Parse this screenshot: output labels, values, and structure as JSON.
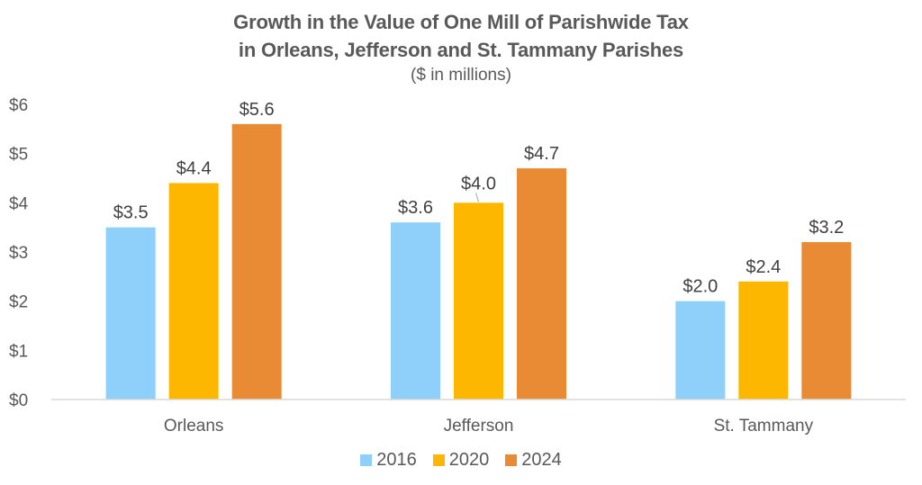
{
  "chart_data": {
    "type": "bar",
    "title_lines": [
      "Growth in the Value of One Mill of Parishwide Tax",
      "in Orleans, Jefferson and St. Tammany Parishes"
    ],
    "subtitle": "($ in millions)",
    "categories": [
      "Orleans",
      "Jefferson",
      "St. Tammany"
    ],
    "series": [
      {
        "name": "2016",
        "color": "#8FD0FA",
        "values": [
          3.5,
          3.6,
          2.0
        ],
        "labels": [
          "$3.5",
          "$3.6",
          "$2.0"
        ]
      },
      {
        "name": "2020",
        "color": "#FDB700",
        "values": [
          4.4,
          4.0,
          2.4
        ],
        "labels": [
          "$4.4",
          "$4.0",
          "$2.4"
        ]
      },
      {
        "name": "2024",
        "color": "#E98A35",
        "values": [
          5.6,
          4.7,
          3.2
        ],
        "labels": [
          "$5.6",
          "$4.7",
          "$3.2"
        ]
      }
    ],
    "xlabel": "",
    "ylabel": "",
    "ylim": [
      0,
      6
    ],
    "yticks": [
      0,
      1,
      2,
      3,
      4,
      5,
      6
    ],
    "ytick_labels": [
      "$0",
      "$1",
      "$2",
      "$3",
      "$4",
      "$5",
      "$6"
    ],
    "grid": false,
    "legend": "bottom-center",
    "axis_color": "#D9D9D9"
  }
}
